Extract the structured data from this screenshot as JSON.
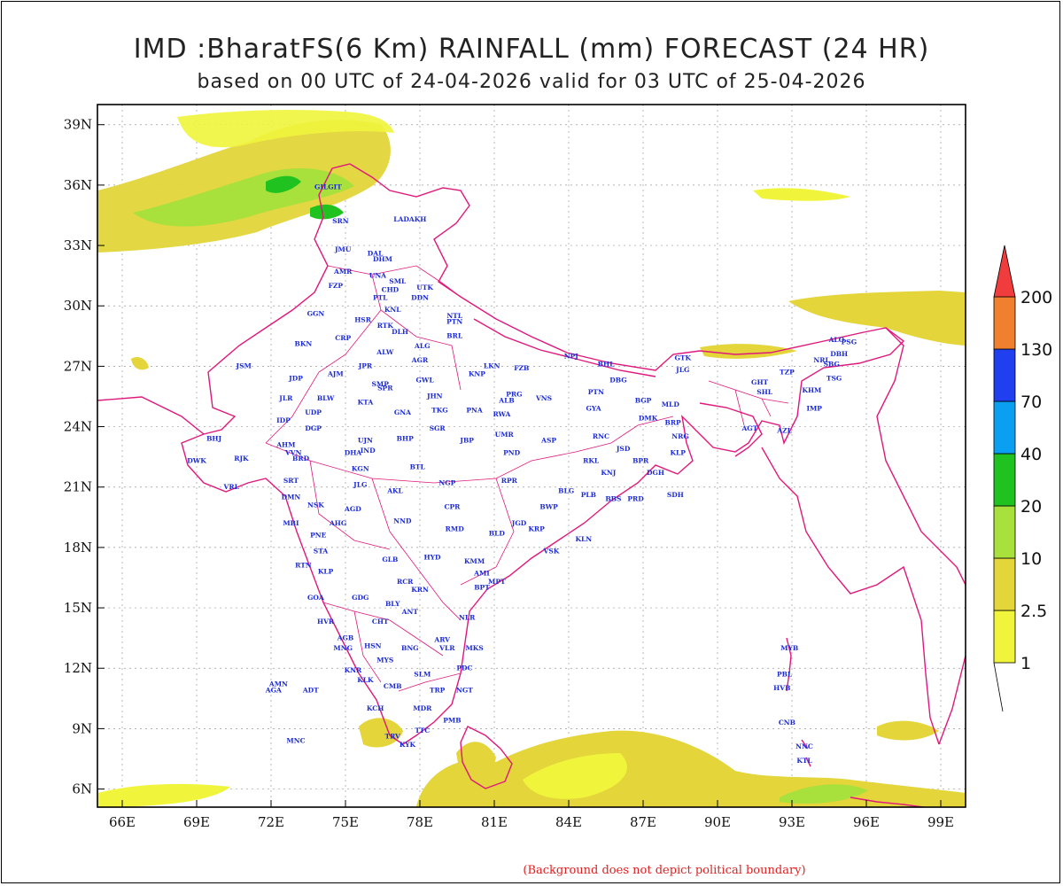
{
  "title": "IMD :BharatFS(6 Km) RAINFALL (mm) FORECAST (24 HR)",
  "subtitle": "based on 00 UTC of 24-04-2026 valid for 03 UTC of 25-04-2026",
  "note": "(Background does not depict political boundary)",
  "x_ticks": [
    "66E",
    "69E",
    "72E",
    "75E",
    "78E",
    "81E",
    "84E",
    "87E",
    "90E",
    "93E",
    "96E",
    "99E"
  ],
  "y_ticks": [
    "39N",
    "36N",
    "33N",
    "30N",
    "27N",
    "24N",
    "21N",
    "18N",
    "15N",
    "12N",
    "9N",
    "6N"
  ],
  "colorbar": {
    "labels": [
      "1",
      "2.5",
      "10",
      "20",
      "40",
      "70",
      "130",
      "200"
    ],
    "colors": [
      "#f0f53c",
      "#e3d53a",
      "#a8e03c",
      "#1fc21f",
      "#0a9ff0",
      "#2040f0",
      "#f08030",
      "#f03c3c"
    ]
  },
  "colors": {
    "boundary": "#e0187c",
    "city_text": "#1c2bd6"
  },
  "cities": [
    {
      "name": "GILGIT",
      "lon": 74.3,
      "lat": 35.8
    },
    {
      "name": "SRN",
      "lon": 74.8,
      "lat": 34.1
    },
    {
      "name": "LADAKH",
      "lon": 77.6,
      "lat": 34.2
    },
    {
      "name": "JMU",
      "lon": 74.9,
      "lat": 32.7
    },
    {
      "name": "DAL",
      "lon": 76.2,
      "lat": 32.5
    },
    {
      "name": "DHM",
      "lon": 76.5,
      "lat": 32.2
    },
    {
      "name": "AMR",
      "lon": 74.9,
      "lat": 31.6
    },
    {
      "name": "UNA",
      "lon": 76.3,
      "lat": 31.4
    },
    {
      "name": "FZP",
      "lon": 74.6,
      "lat": 30.9
    },
    {
      "name": "SML",
      "lon": 77.1,
      "lat": 31.1
    },
    {
      "name": "CHD",
      "lon": 76.8,
      "lat": 30.7
    },
    {
      "name": "UTK",
      "lon": 78.2,
      "lat": 30.8
    },
    {
      "name": "PTL",
      "lon": 76.4,
      "lat": 30.3
    },
    {
      "name": "DDN",
      "lon": 78.0,
      "lat": 30.3
    },
    {
      "name": "KNL",
      "lon": 76.9,
      "lat": 29.7
    },
    {
      "name": "GGN",
      "lon": 73.8,
      "lat": 29.5
    },
    {
      "name": "NTL",
      "lon": 79.4,
      "lat": 29.4
    },
    {
      "name": "PTN",
      "lon": 79.4,
      "lat": 29.1
    },
    {
      "name": "HSR",
      "lon": 75.7,
      "lat": 29.2
    },
    {
      "name": "RTK",
      "lon": 76.6,
      "lat": 28.9
    },
    {
      "name": "DLH",
      "lon": 77.2,
      "lat": 28.6
    },
    {
      "name": "BRL",
      "lon": 79.4,
      "lat": 28.4
    },
    {
      "name": "CRP",
      "lon": 74.9,
      "lat": 28.3
    },
    {
      "name": "BKN",
      "lon": 73.3,
      "lat": 28.0
    },
    {
      "name": "ALG",
      "lon": 78.1,
      "lat": 27.9
    },
    {
      "name": "ALW",
      "lon": 76.6,
      "lat": 27.6
    },
    {
      "name": "AGR",
      "lon": 78.0,
      "lat": 27.2
    },
    {
      "name": "LKN",
      "lon": 80.9,
      "lat": 26.9
    },
    {
      "name": "FZB",
      "lon": 82.1,
      "lat": 26.8
    },
    {
      "name": "NPJ",
      "lon": 84.1,
      "lat": 27.4
    },
    {
      "name": "JSM",
      "lon": 70.9,
      "lat": 26.9
    },
    {
      "name": "JPR",
      "lon": 75.8,
      "lat": 26.9
    },
    {
      "name": "AJM",
      "lon": 74.6,
      "lat": 26.5
    },
    {
      "name": "JDP",
      "lon": 73.0,
      "lat": 26.3
    },
    {
      "name": "GWL",
      "lon": 78.2,
      "lat": 26.2
    },
    {
      "name": "KNP",
      "lon": 80.3,
      "lat": 26.5
    },
    {
      "name": "BHL",
      "lon": 85.5,
      "lat": 27.0
    },
    {
      "name": "DBG",
      "lon": 86.0,
      "lat": 26.2
    },
    {
      "name": "SMP",
      "lon": 76.4,
      "lat": 26.0
    },
    {
      "name": "SPR",
      "lon": 76.6,
      "lat": 25.8
    },
    {
      "name": "PRG",
      "lon": 81.8,
      "lat": 25.5
    },
    {
      "name": "VNS",
      "lon": 83.0,
      "lat": 25.3
    },
    {
      "name": "ALB",
      "lon": 81.5,
      "lat": 25.2
    },
    {
      "name": "PTN",
      "lon": 85.1,
      "lat": 25.6
    },
    {
      "name": "BLW",
      "lon": 74.2,
      "lat": 25.3
    },
    {
      "name": "KTA",
      "lon": 75.8,
      "lat": 25.1
    },
    {
      "name": "JLR",
      "lon": 72.6,
      "lat": 25.3
    },
    {
      "name": "JHN",
      "lon": 78.6,
      "lat": 25.4
    },
    {
      "name": "RWA",
      "lon": 81.3,
      "lat": 24.5
    },
    {
      "name": "PNA",
      "lon": 80.2,
      "lat": 24.7
    },
    {
      "name": "TKG",
      "lon": 78.8,
      "lat": 24.7
    },
    {
      "name": "GNA",
      "lon": 77.3,
      "lat": 24.6
    },
    {
      "name": "UDP",
      "lon": 73.7,
      "lat": 24.6
    },
    {
      "name": "GYA",
      "lon": 85.0,
      "lat": 24.8
    },
    {
      "name": "BGP",
      "lon": 87.0,
      "lat": 25.2
    },
    {
      "name": "MLD",
      "lon": 88.1,
      "lat": 25.0
    },
    {
      "name": "DMK",
      "lon": 87.2,
      "lat": 24.3
    },
    {
      "name": "BRP",
      "lon": 88.2,
      "lat": 24.1
    },
    {
      "name": "SGR",
      "lon": 78.7,
      "lat": 23.8
    },
    {
      "name": "IDP",
      "lon": 72.5,
      "lat": 24.2
    },
    {
      "name": "DGP",
      "lon": 73.7,
      "lat": 23.8
    },
    {
      "name": "UJN",
      "lon": 75.8,
      "lat": 23.2
    },
    {
      "name": "BHP",
      "lon": 77.4,
      "lat": 23.3
    },
    {
      "name": "JBP",
      "lon": 79.9,
      "lat": 23.2
    },
    {
      "name": "UMR",
      "lon": 81.4,
      "lat": 23.5
    },
    {
      "name": "ASP",
      "lon": 83.2,
      "lat": 23.2
    },
    {
      "name": "RNC",
      "lon": 85.3,
      "lat": 23.4
    },
    {
      "name": "NRG",
      "lon": 88.5,
      "lat": 23.4
    },
    {
      "name": "AHM",
      "lon": 72.6,
      "lat": 23.0
    },
    {
      "name": "BHJ",
      "lon": 69.7,
      "lat": 23.3
    },
    {
      "name": "DWK",
      "lon": 69.0,
      "lat": 22.2
    },
    {
      "name": "RJK",
      "lon": 70.8,
      "lat": 22.3
    },
    {
      "name": "VVN",
      "lon": 72.9,
      "lat": 22.6
    },
    {
      "name": "BRD",
      "lon": 73.2,
      "lat": 22.3
    },
    {
      "name": "IND",
      "lon": 75.9,
      "lat": 22.7
    },
    {
      "name": "DHA",
      "lon": 75.3,
      "lat": 22.6
    },
    {
      "name": "KGN",
      "lon": 75.6,
      "lat": 21.8
    },
    {
      "name": "BTL",
      "lon": 77.9,
      "lat": 21.9
    },
    {
      "name": "PND",
      "lon": 81.7,
      "lat": 22.6
    },
    {
      "name": "JSD",
      "lon": 86.2,
      "lat": 22.8
    },
    {
      "name": "KLP",
      "lon": 88.4,
      "lat": 22.6
    },
    {
      "name": "BPR",
      "lon": 86.9,
      "lat": 22.2
    },
    {
      "name": "DGH",
      "lon": 87.5,
      "lat": 21.6
    },
    {
      "name": "KNJ",
      "lon": 85.6,
      "lat": 21.6
    },
    {
      "name": "RKL",
      "lon": 84.9,
      "lat": 22.2
    },
    {
      "name": "VRL",
      "lon": 70.4,
      "lat": 20.9
    },
    {
      "name": "SRT",
      "lon": 72.8,
      "lat": 21.2
    },
    {
      "name": "JLG",
      "lon": 75.6,
      "lat": 21.0
    },
    {
      "name": "AKL",
      "lon": 77.0,
      "lat": 20.7
    },
    {
      "name": "NGP",
      "lon": 79.1,
      "lat": 21.1
    },
    {
      "name": "RPR",
      "lon": 81.6,
      "lat": 21.2
    },
    {
      "name": "BLG",
      "lon": 83.9,
      "lat": 20.7
    },
    {
      "name": "PLB",
      "lon": 84.8,
      "lat": 20.5
    },
    {
      "name": "BBS",
      "lon": 85.8,
      "lat": 20.3
    },
    {
      "name": "PRD",
      "lon": 86.7,
      "lat": 20.3
    },
    {
      "name": "SDH",
      "lon": 88.3,
      "lat": 20.5
    },
    {
      "name": "DMN",
      "lon": 72.8,
      "lat": 20.4
    },
    {
      "name": "NSK",
      "lon": 73.8,
      "lat": 20.0
    },
    {
      "name": "AGD",
      "lon": 75.3,
      "lat": 19.8
    },
    {
      "name": "NND",
      "lon": 77.3,
      "lat": 19.2
    },
    {
      "name": "CPR",
      "lon": 79.3,
      "lat": 19.9
    },
    {
      "name": "BWP",
      "lon": 83.2,
      "lat": 19.9
    },
    {
      "name": "MBI",
      "lon": 72.8,
      "lat": 19.1
    },
    {
      "name": "AHG",
      "lon": 74.7,
      "lat": 19.1
    },
    {
      "name": "RMD",
      "lon": 79.4,
      "lat": 18.8
    },
    {
      "name": "BLD",
      "lon": 81.1,
      "lat": 18.6
    },
    {
      "name": "JGD",
      "lon": 82.0,
      "lat": 19.1
    },
    {
      "name": "KRP",
      "lon": 82.7,
      "lat": 18.8
    },
    {
      "name": "KLN",
      "lon": 84.6,
      "lat": 18.3
    },
    {
      "name": "PNE",
      "lon": 73.9,
      "lat": 18.5
    },
    {
      "name": "VSK",
      "lon": 83.3,
      "lat": 17.7
    },
    {
      "name": "RTN",
      "lon": 73.3,
      "lat": 17.0
    },
    {
      "name": "STA",
      "lon": 74.0,
      "lat": 17.7
    },
    {
      "name": "GLB",
      "lon": 76.8,
      "lat": 17.3
    },
    {
      "name": "HYD",
      "lon": 78.5,
      "lat": 17.4
    },
    {
      "name": "KMM",
      "lon": 80.2,
      "lat": 17.2
    },
    {
      "name": "AMI",
      "lon": 80.5,
      "lat": 16.6
    },
    {
      "name": "KLP",
      "lon": 74.2,
      "lat": 16.7
    },
    {
      "name": "MPT",
      "lon": 81.1,
      "lat": 16.2
    },
    {
      "name": "BPT",
      "lon": 80.5,
      "lat": 15.9
    },
    {
      "name": "RCR",
      "lon": 77.4,
      "lat": 16.2
    },
    {
      "name": "KRN",
      "lon": 78.0,
      "lat": 15.8
    },
    {
      "name": "GOA",
      "lon": 73.8,
      "lat": 15.4
    },
    {
      "name": "GDG",
      "lon": 75.6,
      "lat": 15.4
    },
    {
      "name": "BLY",
      "lon": 76.9,
      "lat": 15.1
    },
    {
      "name": "ANT",
      "lon": 77.6,
      "lat": 14.7
    },
    {
      "name": "NLR",
      "lon": 79.9,
      "lat": 14.4
    },
    {
      "name": "HVR",
      "lon": 74.2,
      "lat": 14.2
    },
    {
      "name": "CHT",
      "lon": 76.4,
      "lat": 14.2
    },
    {
      "name": "AGB",
      "lon": 75.0,
      "lat": 13.4
    },
    {
      "name": "HSN",
      "lon": 76.1,
      "lat": 13.0
    },
    {
      "name": "ARV",
      "lon": 78.9,
      "lat": 13.3
    },
    {
      "name": "MNG",
      "lon": 74.9,
      "lat": 12.9
    },
    {
      "name": "BNG",
      "lon": 77.6,
      "lat": 12.9
    },
    {
      "name": "VLR",
      "lon": 79.1,
      "lat": 12.9
    },
    {
      "name": "MKS",
      "lon": 80.2,
      "lat": 12.9
    },
    {
      "name": "MYS",
      "lon": 76.6,
      "lat": 12.3
    },
    {
      "name": "KNR",
      "lon": 75.3,
      "lat": 11.8
    },
    {
      "name": "SLM",
      "lon": 78.1,
      "lat": 11.6
    },
    {
      "name": "PDC",
      "lon": 79.8,
      "lat": 11.9
    },
    {
      "name": "KLK",
      "lon": 75.8,
      "lat": 11.3
    },
    {
      "name": "AMN",
      "lon": 72.3,
      "lat": 11.1
    },
    {
      "name": "AGA",
      "lon": 72.1,
      "lat": 10.8
    },
    {
      "name": "ADT",
      "lon": 73.6,
      "lat": 10.8
    },
    {
      "name": "CMB",
      "lon": 76.9,
      "lat": 11.0
    },
    {
      "name": "TRP",
      "lon": 78.7,
      "lat": 10.8
    },
    {
      "name": "NGT",
      "lon": 79.8,
      "lat": 10.8
    },
    {
      "name": "KCH",
      "lon": 76.2,
      "lat": 9.9
    },
    {
      "name": "MDR",
      "lon": 78.1,
      "lat": 9.9
    },
    {
      "name": "PMB",
      "lon": 79.3,
      "lat": 9.3
    },
    {
      "name": "MNC",
      "lon": 73.0,
      "lat": 8.3
    },
    {
      "name": "TRV",
      "lon": 76.9,
      "lat": 8.5
    },
    {
      "name": "TTC",
      "lon": 78.1,
      "lat": 8.8
    },
    {
      "name": "KYK",
      "lon": 77.5,
      "lat": 8.1
    },
    {
      "name": "GTK",
      "lon": 88.6,
      "lat": 27.3
    },
    {
      "name": "JLG",
      "lon": 88.6,
      "lat": 26.7
    },
    {
      "name": "GHT",
      "lon": 91.7,
      "lat": 26.1
    },
    {
      "name": "SHL",
      "lon": 91.9,
      "lat": 25.6
    },
    {
      "name": "TZP",
      "lon": 92.8,
      "lat": 26.6
    },
    {
      "name": "DBH",
      "lon": 94.9,
      "lat": 27.5
    },
    {
      "name": "KHM",
      "lon": 93.8,
      "lat": 25.7
    },
    {
      "name": "TSG",
      "lon": 94.7,
      "lat": 26.3
    },
    {
      "name": "SBG",
      "lon": 94.6,
      "lat": 27.0
    },
    {
      "name": "NRL",
      "lon": 94.2,
      "lat": 27.2
    },
    {
      "name": "ALO",
      "lon": 94.8,
      "lat": 28.2
    },
    {
      "name": "PSG",
      "lon": 95.3,
      "lat": 28.1
    },
    {
      "name": "IMP",
      "lon": 93.9,
      "lat": 24.8
    },
    {
      "name": "AZL",
      "lon": 92.7,
      "lat": 23.7
    },
    {
      "name": "AGT",
      "lon": 91.3,
      "lat": 23.8
    },
    {
      "name": "MYB",
      "lon": 92.9,
      "lat": 12.9
    },
    {
      "name": "PBL",
      "lon": 92.7,
      "lat": 11.6
    },
    {
      "name": "HVB",
      "lon": 92.6,
      "lat": 10.9
    },
    {
      "name": "CNB",
      "lon": 92.8,
      "lat": 9.2
    },
    {
      "name": "NNC",
      "lon": 93.5,
      "lat": 8.0
    },
    {
      "name": "KTL",
      "lon": 93.5,
      "lat": 7.3
    }
  ]
}
